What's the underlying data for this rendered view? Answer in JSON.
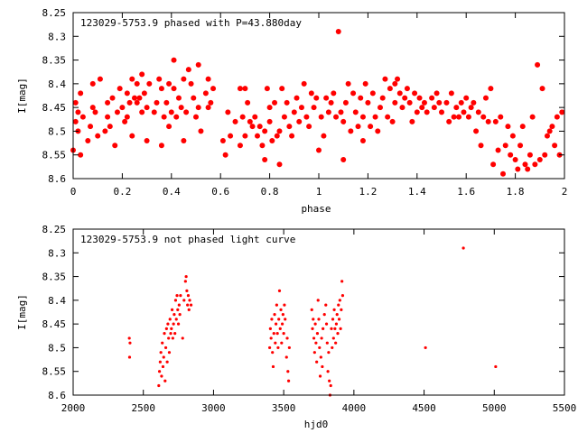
{
  "chart_data": [
    {
      "type": "scatter",
      "title": "123029-5753.9 phased with P=43.880day",
      "xlabel": "phase",
      "ylabel": "I[mag]",
      "xlim": [
        0,
        2
      ],
      "ylim": [
        8.6,
        8.25
      ],
      "y_inverted": true,
      "grid": false,
      "marker_color": "#ff0000",
      "marker": "filled-circle",
      "xticks": [
        "0",
        "0.2",
        "0.4",
        "0.6",
        "0.8",
        "1",
        "1.2",
        "1.4",
        "1.6",
        "1.8",
        "2"
      ],
      "xtick_values": [
        0,
        0.2,
        0.4,
        0.6,
        0.8,
        1.0,
        1.2,
        1.4,
        1.6,
        1.8,
        2.0
      ],
      "yticks": [
        "8.25",
        "8.3",
        "8.35",
        "8.4",
        "8.45",
        "8.5",
        "8.55",
        "8.6"
      ],
      "ytick_values": [
        8.25,
        8.3,
        8.35,
        8.4,
        8.45,
        8.5,
        8.55,
        8.6
      ],
      "points": [
        [
          0.0,
          8.54
        ],
        [
          0.01,
          8.48
        ],
        [
          0.01,
          8.44
        ],
        [
          0.02,
          8.5
        ],
        [
          0.02,
          8.46
        ],
        [
          0.03,
          8.55
        ],
        [
          0.03,
          8.42
        ],
        [
          0.04,
          8.47
        ],
        [
          0.06,
          8.52
        ],
        [
          0.07,
          8.49
        ],
        [
          0.08,
          8.45
        ],
        [
          0.08,
          8.4
        ],
        [
          0.09,
          8.46
        ],
        [
          0.1,
          8.51
        ],
        [
          0.11,
          8.39
        ],
        [
          0.13,
          8.5
        ],
        [
          0.14,
          8.47
        ],
        [
          0.14,
          8.44
        ],
        [
          0.15,
          8.49
        ],
        [
          0.16,
          8.43
        ],
        [
          0.17,
          8.53
        ],
        [
          0.18,
          8.46
        ],
        [
          0.19,
          8.41
        ],
        [
          0.2,
          8.45
        ],
        [
          0.21,
          8.48
        ],
        [
          0.22,
          8.47
        ],
        [
          0.22,
          8.42
        ],
        [
          0.23,
          8.44
        ],
        [
          0.24,
          8.39
        ],
        [
          0.24,
          8.51
        ],
        [
          0.25,
          8.43
        ],
        [
          0.26,
          8.44
        ],
        [
          0.26,
          8.4
        ],
        [
          0.27,
          8.43
        ],
        [
          0.28,
          8.38
        ],
        [
          0.28,
          8.46
        ],
        [
          0.29,
          8.42
        ],
        [
          0.3,
          8.45
        ],
        [
          0.3,
          8.52
        ],
        [
          0.31,
          8.4
        ],
        [
          0.33,
          8.46
        ],
        [
          0.34,
          8.44
        ],
        [
          0.35,
          8.39
        ],
        [
          0.36,
          8.41
        ],
        [
          0.36,
          8.53
        ],
        [
          0.37,
          8.47
        ],
        [
          0.38,
          8.44
        ],
        [
          0.39,
          8.4
        ],
        [
          0.39,
          8.49
        ],
        [
          0.4,
          8.46
        ],
        [
          0.41,
          8.35
        ],
        [
          0.41,
          8.41
        ],
        [
          0.42,
          8.47
        ],
        [
          0.43,
          8.43
        ],
        [
          0.44,
          8.45
        ],
        [
          0.45,
          8.39
        ],
        [
          0.45,
          8.52
        ],
        [
          0.46,
          8.46
        ],
        [
          0.47,
          8.37
        ],
        [
          0.48,
          8.4
        ],
        [
          0.49,
          8.43
        ],
        [
          0.5,
          8.47
        ],
        [
          0.51,
          8.36
        ],
        [
          0.51,
          8.45
        ],
        [
          0.52,
          8.5
        ],
        [
          0.54,
          8.42
        ],
        [
          0.55,
          8.39
        ],
        [
          0.55,
          8.45
        ],
        [
          0.56,
          8.44
        ],
        [
          0.57,
          8.41
        ],
        [
          0.61,
          8.52
        ],
        [
          0.62,
          8.55
        ],
        [
          0.63,
          8.46
        ],
        [
          0.64,
          8.51
        ],
        [
          0.66,
          8.48
        ],
        [
          0.68,
          8.41
        ],
        [
          0.68,
          8.53
        ],
        [
          0.69,
          8.47
        ],
        [
          0.7,
          8.51
        ],
        [
          0.7,
          8.41
        ],
        [
          0.71,
          8.44
        ],
        [
          0.72,
          8.48
        ],
        [
          0.73,
          8.49
        ],
        [
          0.74,
          8.47
        ],
        [
          0.75,
          8.51
        ],
        [
          0.76,
          8.49
        ],
        [
          0.77,
          8.53
        ],
        [
          0.78,
          8.5
        ],
        [
          0.78,
          8.56
        ],
        [
          0.79,
          8.41
        ],
        [
          0.8,
          8.48
        ],
        [
          0.8,
          8.45
        ],
        [
          0.81,
          8.52
        ],
        [
          0.82,
          8.44
        ],
        [
          0.83,
          8.51
        ],
        [
          0.84,
          8.5
        ],
        [
          0.84,
          8.57
        ],
        [
          0.85,
          8.41
        ],
        [
          0.86,
          8.47
        ],
        [
          0.87,
          8.44
        ],
        [
          0.88,
          8.49
        ],
        [
          0.89,
          8.51
        ],
        [
          0.9,
          8.46
        ],
        [
          0.91,
          8.43
        ],
        [
          0.92,
          8.48
        ],
        [
          0.93,
          8.45
        ],
        [
          0.94,
          8.4
        ],
        [
          0.95,
          8.47
        ],
        [
          0.96,
          8.49
        ],
        [
          0.97,
          8.42
        ],
        [
          0.98,
          8.45
        ],
        [
          0.99,
          8.43
        ],
        [
          1.0,
          8.54
        ],
        [
          1.01,
          8.47
        ],
        [
          1.02,
          8.51
        ],
        [
          1.03,
          8.43
        ],
        [
          1.04,
          8.46
        ],
        [
          1.05,
          8.44
        ],
        [
          1.06,
          8.42
        ],
        [
          1.07,
          8.47
        ],
        [
          1.08,
          8.29
        ],
        [
          1.09,
          8.46
        ],
        [
          1.1,
          8.48
        ],
        [
          1.1,
          8.56
        ],
        [
          1.11,
          8.44
        ],
        [
          1.12,
          8.4
        ],
        [
          1.13,
          8.5
        ],
        [
          1.14,
          8.42
        ],
        [
          1.15,
          8.46
        ],
        [
          1.16,
          8.49
        ],
        [
          1.17,
          8.43
        ],
        [
          1.18,
          8.47
        ],
        [
          1.18,
          8.52
        ],
        [
          1.19,
          8.4
        ],
        [
          1.2,
          8.44
        ],
        [
          1.21,
          8.49
        ],
        [
          1.22,
          8.42
        ],
        [
          1.23,
          8.47
        ],
        [
          1.24,
          8.5
        ],
        [
          1.25,
          8.45
        ],
        [
          1.26,
          8.43
        ],
        [
          1.27,
          8.39
        ],
        [
          1.28,
          8.47
        ],
        [
          1.29,
          8.41
        ],
        [
          1.3,
          8.48
        ],
        [
          1.31,
          8.44
        ],
        [
          1.31,
          8.4
        ],
        [
          1.32,
          8.39
        ],
        [
          1.33,
          8.42
        ],
        [
          1.34,
          8.45
        ],
        [
          1.35,
          8.43
        ],
        [
          1.36,
          8.41
        ],
        [
          1.37,
          8.44
        ],
        [
          1.38,
          8.48
        ],
        [
          1.39,
          8.42
        ],
        [
          1.4,
          8.46
        ],
        [
          1.41,
          8.43
        ],
        [
          1.42,
          8.45
        ],
        [
          1.43,
          8.44
        ],
        [
          1.44,
          8.46
        ],
        [
          1.46,
          8.43
        ],
        [
          1.47,
          8.45
        ],
        [
          1.48,
          8.42
        ],
        [
          1.49,
          8.44
        ],
        [
          1.5,
          8.46
        ],
        [
          1.52,
          8.44
        ],
        [
          1.53,
          8.48
        ],
        [
          1.54,
          8.42
        ],
        [
          1.55,
          8.47
        ],
        [
          1.56,
          8.45
        ],
        [
          1.57,
          8.47
        ],
        [
          1.58,
          8.44
        ],
        [
          1.59,
          8.46
        ],
        [
          1.6,
          8.43
        ],
        [
          1.61,
          8.47
        ],
        [
          1.62,
          8.45
        ],
        [
          1.63,
          8.44
        ],
        [
          1.64,
          8.5
        ],
        [
          1.65,
          8.46
        ],
        [
          1.66,
          8.53
        ],
        [
          1.67,
          8.47
        ],
        [
          1.68,
          8.43
        ],
        [
          1.69,
          8.48
        ],
        [
          1.7,
          8.41
        ],
        [
          1.71,
          8.57
        ],
        [
          1.72,
          8.48
        ],
        [
          1.73,
          8.54
        ],
        [
          1.74,
          8.47
        ],
        [
          1.75,
          8.59
        ],
        [
          1.76,
          8.53
        ],
        [
          1.77,
          8.49
        ],
        [
          1.78,
          8.55
        ],
        [
          1.79,
          8.51
        ],
        [
          1.8,
          8.56
        ],
        [
          1.81,
          8.58
        ],
        [
          1.82,
          8.53
        ],
        [
          1.83,
          8.49
        ],
        [
          1.84,
          8.57
        ],
        [
          1.85,
          8.58
        ],
        [
          1.86,
          8.55
        ],
        [
          1.87,
          8.47
        ],
        [
          1.88,
          8.57
        ],
        [
          1.89,
          8.36
        ],
        [
          1.9,
          8.56
        ],
        [
          1.91,
          8.41
        ],
        [
          1.92,
          8.55
        ],
        [
          1.93,
          8.51
        ],
        [
          1.94,
          8.5
        ],
        [
          1.95,
          8.49
        ],
        [
          1.96,
          8.53
        ],
        [
          1.97,
          8.47
        ],
        [
          1.98,
          8.55
        ],
        [
          1.99,
          8.46
        ]
      ]
    },
    {
      "type": "scatter",
      "title": "123029-5753.9 not phased light curve",
      "xlabel": "hjd0",
      "ylabel": "I[mag]",
      "xlim": [
        2000,
        5500
      ],
      "ylim": [
        8.6,
        8.25
      ],
      "y_inverted": true,
      "grid": false,
      "marker_color": "#ff0000",
      "marker": "small-dot",
      "xticks": [
        "2000",
        "2500",
        "3000",
        "3500",
        "4000",
        "4500",
        "5000",
        "5500"
      ],
      "xtick_values": [
        2000,
        2500,
        3000,
        3500,
        4000,
        4500,
        5000,
        5500
      ],
      "yticks": [
        "8.25",
        "8.3",
        "8.35",
        "8.4",
        "8.45",
        "8.5",
        "8.55",
        "8.6"
      ],
      "ytick_values": [
        8.25,
        8.3,
        8.35,
        8.4,
        8.45,
        8.5,
        8.55,
        8.6
      ],
      "points": [
        [
          2400,
          8.48
        ],
        [
          2402,
          8.52
        ],
        [
          2405,
          8.49
        ],
        [
          2610,
          8.58
        ],
        [
          2615,
          8.55
        ],
        [
          2620,
          8.53
        ],
        [
          2625,
          8.51
        ],
        [
          2630,
          8.56
        ],
        [
          2635,
          8.49
        ],
        [
          2640,
          8.54
        ],
        [
          2645,
          8.52
        ],
        [
          2650,
          8.47
        ],
        [
          2655,
          8.57
        ],
        [
          2660,
          8.5
        ],
        [
          2665,
          8.46
        ],
        [
          2670,
          8.53
        ],
        [
          2675,
          8.45
        ],
        [
          2680,
          8.48
        ],
        [
          2685,
          8.51
        ],
        [
          2690,
          8.44
        ],
        [
          2695,
          8.47
        ],
        [
          2700,
          8.46
        ],
        [
          2705,
          8.42
        ],
        [
          2710,
          8.48
        ],
        [
          2715,
          8.45
        ],
        [
          2720,
          8.43
        ],
        [
          2725,
          8.47
        ],
        [
          2730,
          8.4
        ],
        [
          2735,
          8.44
        ],
        [
          2740,
          8.39
        ],
        [
          2745,
          8.42
        ],
        [
          2750,
          8.45
        ],
        [
          2755,
          8.41
        ],
        [
          2760,
          8.43
        ],
        [
          2765,
          8.39
        ],
        [
          2780,
          8.48
        ],
        [
          2790,
          8.4
        ],
        [
          2800,
          8.36
        ],
        [
          2805,
          8.35
        ],
        [
          2810,
          8.38
        ],
        [
          2815,
          8.41
        ],
        [
          2820,
          8.39
        ],
        [
          2825,
          8.42
        ],
        [
          2830,
          8.4
        ],
        [
          2840,
          8.41
        ],
        [
          3400,
          8.5
        ],
        [
          3405,
          8.46
        ],
        [
          3410,
          8.48
        ],
        [
          3415,
          8.44
        ],
        [
          3420,
          8.51
        ],
        [
          3425,
          8.54
        ],
        [
          3430,
          8.47
        ],
        [
          3435,
          8.43
        ],
        [
          3440,
          8.49
        ],
        [
          3445,
          8.45
        ],
        [
          3450,
          8.41
        ],
        [
          3455,
          8.47
        ],
        [
          3460,
          8.5
        ],
        [
          3465,
          8.44
        ],
        [
          3470,
          8.38
        ],
        [
          3475,
          8.46
        ],
        [
          3480,
          8.42
        ],
        [
          3485,
          8.49
        ],
        [
          3490,
          8.45
        ],
        [
          3495,
          8.43
        ],
        [
          3500,
          8.47
        ],
        [
          3505,
          8.41
        ],
        [
          3510,
          8.44
        ],
        [
          3520,
          8.52
        ],
        [
          3525,
          8.48
        ],
        [
          3530,
          8.55
        ],
        [
          3535,
          8.57
        ],
        [
          3540,
          8.5
        ],
        [
          3700,
          8.42
        ],
        [
          3705,
          8.46
        ],
        [
          3710,
          8.44
        ],
        [
          3715,
          8.48
        ],
        [
          3720,
          8.51
        ],
        [
          3725,
          8.45
        ],
        [
          3730,
          8.49
        ],
        [
          3735,
          8.53
        ],
        [
          3740,
          8.47
        ],
        [
          3745,
          8.4
        ],
        [
          3750,
          8.44
        ],
        [
          3755,
          8.5
        ],
        [
          3760,
          8.56
        ],
        [
          3765,
          8.52
        ],
        [
          3770,
          8.48
        ],
        [
          3775,
          8.54
        ],
        [
          3780,
          8.46
        ],
        [
          3790,
          8.43
        ],
        [
          3800,
          8.41
        ],
        [
          3805,
          8.45
        ],
        [
          3810,
          8.49
        ],
        [
          3815,
          8.55
        ],
        [
          3820,
          8.51
        ],
        [
          3825,
          8.57
        ],
        [
          3830,
          8.6
        ],
        [
          3835,
          8.58
        ],
        [
          3840,
          8.46
        ],
        [
          3845,
          8.5
        ],
        [
          3850,
          8.44
        ],
        [
          3855,
          8.48
        ],
        [
          3860,
          8.42
        ],
        [
          3865,
          8.46
        ],
        [
          3870,
          8.49
        ],
        [
          3875,
          8.45
        ],
        [
          3880,
          8.43
        ],
        [
          3885,
          8.47
        ],
        [
          3890,
          8.41
        ],
        [
          3895,
          8.44
        ],
        [
          3900,
          8.4
        ],
        [
          3905,
          8.46
        ],
        [
          3910,
          8.42
        ],
        [
          3915,
          8.36
        ],
        [
          3920,
          8.39
        ],
        [
          4510,
          8.5
        ],
        [
          4780,
          8.29
        ],
        [
          5010,
          8.54
        ]
      ]
    }
  ]
}
